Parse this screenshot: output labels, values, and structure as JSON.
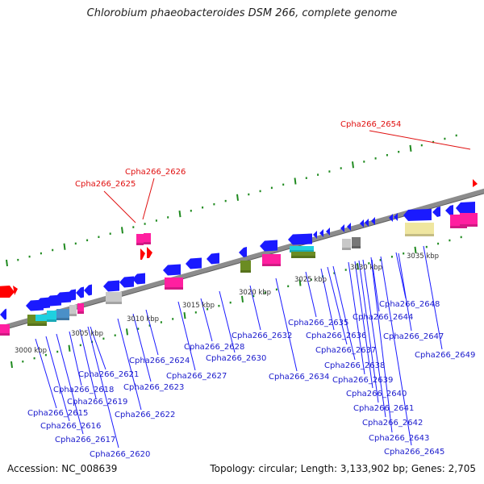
{
  "title": "Chlorobium phaeobacteroides DSM 266, complete genome",
  "footer": {
    "accession": "Accession: NC_008639",
    "topology": "Topology: circular; Length: 3,133,902 bp; Genes: 2,705"
  },
  "colors": {
    "backbone": "#8c8c8c",
    "tick": "#1f8a1f",
    "gene_forward_highlight": "#ff0000",
    "gene_reverse": "#1a1aff",
    "label_reverse": "#1a1acc",
    "label_highlight": "#e01010",
    "rna_pink": "#ff1fa0",
    "olive": "#6b8c23",
    "cyan": "#1fd0e0",
    "steel": "#4a90c8",
    "light_gray": "#c8c8c8",
    "dark_gray": "#777777",
    "khaki": "#efe6a0"
  },
  "scale_labels": [
    "3000 kbp",
    "3005 kbp",
    "3010 kbp",
    "3015 kbp",
    "3020 kbp",
    "3025 kbp",
    "3030 kbp",
    "3035 kbp"
  ],
  "highlight_labels": [
    {
      "name": "Cpha266_2625"
    },
    {
      "name": "Cpha266_2626"
    },
    {
      "name": "Cpha266_2654"
    }
  ],
  "gene_labels": [
    {
      "name": "Cpha266_2615"
    },
    {
      "name": "Cpha266_2616"
    },
    {
      "name": "Cpha266_2617"
    },
    {
      "name": "Cpha266_2618"
    },
    {
      "name": "Cpha266_2619"
    },
    {
      "name": "Cpha266_2620"
    },
    {
      "name": "Cpha266_2621"
    },
    {
      "name": "Cpha266_2622"
    },
    {
      "name": "Cpha266_2623"
    },
    {
      "name": "Cpha266_2624"
    },
    {
      "name": "Cpha266_2627"
    },
    {
      "name": "Cpha266_2628"
    },
    {
      "name": "Cpha266_2630"
    },
    {
      "name": "Cpha266_2632"
    },
    {
      "name": "Cpha266_2634"
    },
    {
      "name": "Cpha266_2635"
    },
    {
      "name": "Cpha266_2636"
    },
    {
      "name": "Cpha266_2637"
    },
    {
      "name": "Cpha266_2638"
    },
    {
      "name": "Cpha266_2639"
    },
    {
      "name": "Cpha266_2640"
    },
    {
      "name": "Cpha266_2641"
    },
    {
      "name": "Cpha266_2642"
    },
    {
      "name": "Cpha266_2643"
    },
    {
      "name": "Cpha266_2644"
    },
    {
      "name": "Cpha266_2645"
    },
    {
      "name": "Cpha266_2647"
    },
    {
      "name": "Cpha266_2648"
    },
    {
      "name": "Cpha266_2649"
    }
  ]
}
